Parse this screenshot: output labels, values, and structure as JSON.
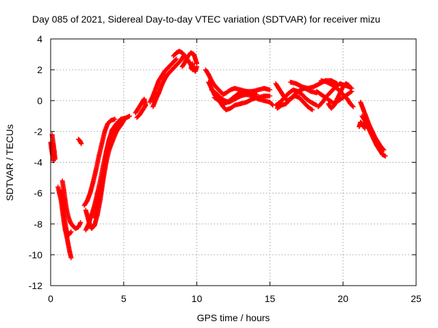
{
  "chart_data": {
    "type": "scatter",
    "title": "Day 085 of 2021, Sidereal Day-to-day VTEC variation (SDTVAR) for receiver mizu",
    "xlabel": "GPS time / hours",
    "ylabel": "SDTVAR / TECUs",
    "xlim": [
      0,
      25
    ],
    "ylim": [
      -12,
      4
    ],
    "xticks": [
      0,
      5,
      10,
      15,
      20,
      25
    ],
    "yticks": [
      -12,
      -10,
      -8,
      -6,
      -4,
      -2,
      0,
      2,
      4
    ],
    "grid": true,
    "colors": {
      "series": "#ff0000",
      "grid": "#a0a0a0",
      "axis": "#000000"
    },
    "marker": "+",
    "series": [
      {
        "name": "seg01",
        "points": [
          [
            0.0,
            -2.7
          ],
          [
            0.05,
            -3.1
          ],
          [
            0.12,
            -3.5
          ],
          [
            0.2,
            -3.9
          ]
        ]
      },
      {
        "name": "seg02",
        "points": [
          [
            0.1,
            -2.2
          ],
          [
            0.18,
            -2.8
          ],
          [
            0.25,
            -3.3
          ],
          [
            0.3,
            -3.8
          ]
        ]
      },
      {
        "name": "seg03",
        "points": [
          [
            0.5,
            -5.6
          ],
          [
            0.6,
            -6.0
          ],
          [
            0.7,
            -6.4
          ],
          [
            0.8,
            -7.1
          ],
          [
            0.9,
            -7.8
          ],
          [
            1.0,
            -8.4
          ],
          [
            1.1,
            -8.8
          ],
          [
            1.2,
            -9.3
          ],
          [
            1.3,
            -9.8
          ],
          [
            1.4,
            -10.2
          ]
        ]
      },
      {
        "name": "seg04",
        "points": [
          [
            0.8,
            -5.2
          ],
          [
            0.9,
            -5.8
          ],
          [
            1.0,
            -6.5
          ],
          [
            1.1,
            -7.1
          ],
          [
            1.2,
            -7.5
          ],
          [
            1.35,
            -7.9
          ],
          [
            1.5,
            -8.1
          ],
          [
            1.7,
            -8.3
          ],
          [
            1.9,
            -8.2
          ],
          [
            2.05,
            -7.9
          ]
        ]
      },
      {
        "name": "seg05",
        "points": [
          [
            0.7,
            -5.9
          ],
          [
            0.8,
            -6.6
          ],
          [
            0.9,
            -7.3
          ],
          [
            1.0,
            -8.0
          ],
          [
            1.1,
            -8.5
          ],
          [
            1.25,
            -8.7
          ],
          [
            1.4,
            -8.5
          ]
        ]
      },
      {
        "name": "seg06",
        "points": [
          [
            1.9,
            -2.5
          ],
          [
            2.0,
            -2.6
          ],
          [
            2.1,
            -2.8
          ]
        ]
      },
      {
        "name": "seg07",
        "points": [
          [
            2.4,
            -7.1
          ],
          [
            2.6,
            -7.8
          ],
          [
            2.8,
            -8.3
          ],
          [
            3.0,
            -8.1
          ],
          [
            3.2,
            -7.4
          ],
          [
            3.4,
            -6.4
          ],
          [
            3.6,
            -5.1
          ],
          [
            3.8,
            -4.0
          ],
          [
            4.0,
            -3.2
          ],
          [
            4.2,
            -2.7
          ],
          [
            4.5,
            -2.0
          ],
          [
            4.8,
            -1.6
          ],
          [
            5.0,
            -1.3
          ]
        ]
      },
      {
        "name": "seg08",
        "points": [
          [
            2.3,
            -6.8
          ],
          [
            2.5,
            -6.5
          ],
          [
            2.7,
            -6.0
          ],
          [
            2.9,
            -5.3
          ],
          [
            3.1,
            -4.5
          ],
          [
            3.3,
            -3.6
          ],
          [
            3.5,
            -2.8
          ],
          [
            3.7,
            -2.0
          ],
          [
            3.9,
            -1.5
          ],
          [
            4.1,
            -1.3
          ],
          [
            4.4,
            -1.2
          ]
        ]
      },
      {
        "name": "seg09",
        "points": [
          [
            3.0,
            -7.6
          ],
          [
            3.2,
            -6.9
          ],
          [
            3.4,
            -6.0
          ],
          [
            3.6,
            -4.8
          ],
          [
            3.8,
            -3.6
          ],
          [
            4.0,
            -2.6
          ],
          [
            4.2,
            -1.9
          ],
          [
            4.5,
            -1.5
          ],
          [
            4.8,
            -1.2
          ],
          [
            5.2,
            -1.1
          ],
          [
            5.4,
            -1.0
          ]
        ]
      },
      {
        "name": "seg10",
        "points": [
          [
            2.4,
            -8.4
          ],
          [
            2.6,
            -8.0
          ],
          [
            2.8,
            -7.4
          ],
          [
            3.0,
            -6.8
          ],
          [
            3.2,
            -6.0
          ],
          [
            3.4,
            -5.2
          ],
          [
            3.6,
            -4.2
          ],
          [
            3.8,
            -3.3
          ],
          [
            4.0,
            -2.5
          ],
          [
            4.2,
            -2.0
          ],
          [
            4.5,
            -1.7
          ],
          [
            4.8,
            -1.4
          ],
          [
            5.0,
            -1.2
          ]
        ]
      },
      {
        "name": "seg11",
        "points": [
          [
            5.8,
            -0.8
          ],
          [
            6.0,
            -0.5
          ],
          [
            6.2,
            -0.2
          ],
          [
            6.4,
            0.1
          ],
          [
            6.5,
            -0.3
          ],
          [
            6.3,
            -0.6
          ],
          [
            6.1,
            -0.9
          ],
          [
            5.9,
            -1.1
          ]
        ]
      },
      {
        "name": "seg12",
        "points": [
          [
            6.8,
            -0.1
          ],
          [
            7.0,
            0.3
          ],
          [
            7.2,
            0.8
          ],
          [
            7.4,
            1.3
          ],
          [
            7.6,
            1.6
          ],
          [
            7.8,
            1.9
          ],
          [
            8.0,
            2.1
          ],
          [
            8.2,
            2.3
          ],
          [
            8.4,
            2.5
          ],
          [
            8.6,
            2.7
          ]
        ]
      },
      {
        "name": "seg13",
        "points": [
          [
            7.0,
            -0.4
          ],
          [
            7.2,
            0.1
          ],
          [
            7.4,
            0.5
          ],
          [
            7.6,
            1.0
          ],
          [
            7.8,
            1.4
          ],
          [
            8.0,
            1.7
          ],
          [
            8.3,
            2.0
          ],
          [
            8.6,
            2.3
          ],
          [
            8.9,
            2.6
          ],
          [
            9.1,
            2.9
          ]
        ]
      },
      {
        "name": "seg14",
        "points": [
          [
            8.4,
            2.9
          ],
          [
            8.6,
            3.1
          ],
          [
            8.8,
            3.2
          ],
          [
            9.0,
            3.1
          ],
          [
            9.2,
            2.9
          ],
          [
            9.4,
            2.6
          ],
          [
            9.6,
            2.3
          ],
          [
            9.7,
            2.0
          ]
        ]
      },
      {
        "name": "seg15",
        "points": [
          [
            9.0,
            2.2
          ],
          [
            9.2,
            2.5
          ],
          [
            9.4,
            2.9
          ],
          [
            9.6,
            3.1
          ],
          [
            9.8,
            3.0
          ],
          [
            9.9,
            2.7
          ],
          [
            10.0,
            2.4
          ]
        ]
      },
      {
        "name": "seg16",
        "points": [
          [
            9.6,
            2.1
          ],
          [
            9.7,
            2.4
          ],
          [
            9.8,
            2.0
          ],
          [
            9.9,
            1.9
          ],
          [
            10.0,
            2.2
          ]
        ]
      },
      {
        "name": "seg17",
        "points": [
          [
            10.6,
            2.0
          ],
          [
            10.8,
            1.7
          ],
          [
            11.0,
            1.3
          ],
          [
            11.2,
            1.0
          ],
          [
            11.4,
            0.8
          ],
          [
            11.6,
            0.6
          ],
          [
            11.8,
            0.4
          ],
          [
            12.0,
            0.5
          ],
          [
            12.3,
            0.7
          ],
          [
            12.6,
            0.8
          ],
          [
            13.0,
            0.7
          ],
          [
            13.4,
            0.6
          ],
          [
            13.8,
            0.6
          ],
          [
            14.2,
            0.7
          ],
          [
            14.6,
            0.8
          ],
          [
            15.0,
            0.7
          ]
        ]
      },
      {
        "name": "seg18",
        "points": [
          [
            10.8,
            1.2
          ],
          [
            11.0,
            0.8
          ],
          [
            11.2,
            0.4
          ],
          [
            11.4,
            0.1
          ],
          [
            11.6,
            -0.1
          ],
          [
            11.8,
            -0.4
          ],
          [
            12.0,
            -0.6
          ],
          [
            12.3,
            -0.5
          ],
          [
            12.6,
            -0.3
          ],
          [
            13.0,
            -0.2
          ],
          [
            13.4,
            -0.1
          ],
          [
            13.8,
            0.1
          ],
          [
            14.2,
            0.2
          ],
          [
            14.6,
            0.3
          ],
          [
            15.0,
            0.3
          ]
        ]
      },
      {
        "name": "seg19",
        "points": [
          [
            11.0,
            0.7
          ],
          [
            11.3,
            0.5
          ],
          [
            11.6,
            0.2
          ],
          [
            11.9,
            0.0
          ],
          [
            12.2,
            -0.1
          ],
          [
            12.6,
            0.1
          ],
          [
            13.0,
            0.3
          ],
          [
            13.4,
            0.4
          ],
          [
            13.8,
            0.3
          ],
          [
            14.2,
            0.1
          ],
          [
            14.6,
            0.0
          ],
          [
            15.0,
            -0.1
          ],
          [
            15.2,
            -0.3
          ]
        ]
      },
      {
        "name": "seg20",
        "points": [
          [
            11.2,
            0.2
          ],
          [
            11.5,
            0.0
          ],
          [
            11.8,
            -0.2
          ],
          [
            12.1,
            -0.1
          ],
          [
            12.5,
            0.2
          ],
          [
            12.9,
            0.5
          ],
          [
            13.3,
            0.6
          ],
          [
            13.7,
            0.5
          ],
          [
            14.1,
            0.4
          ]
        ]
      },
      {
        "name": "seg21",
        "points": [
          [
            15.4,
            1.1
          ],
          [
            15.6,
            0.8
          ],
          [
            15.8,
            0.5
          ],
          [
            16.0,
            0.2
          ],
          [
            16.2,
            0.0
          ],
          [
            16.5,
            0.2
          ],
          [
            16.8,
            0.5
          ],
          [
            17.1,
            0.7
          ],
          [
            17.4,
            0.8
          ],
          [
            17.8,
            0.6
          ],
          [
            18.2,
            0.5
          ]
        ]
      },
      {
        "name": "seg22",
        "points": [
          [
            15.4,
            -0.3
          ],
          [
            15.7,
            -0.1
          ],
          [
            16.0,
            0.2
          ],
          [
            16.3,
            0.5
          ],
          [
            16.6,
            0.7
          ],
          [
            16.9,
            0.6
          ],
          [
            17.2,
            0.4
          ],
          [
            17.5,
            0.1
          ],
          [
            17.8,
            -0.1
          ],
          [
            18.2,
            -0.3
          ]
        ]
      },
      {
        "name": "seg23",
        "points": [
          [
            15.5,
            -0.5
          ],
          [
            15.8,
            -0.3
          ],
          [
            16.1,
            -0.2
          ],
          [
            16.4,
            0.1
          ],
          [
            16.7,
            0.3
          ],
          [
            17.0,
            0.2
          ],
          [
            17.3,
            -0.1
          ],
          [
            17.6,
            -0.4
          ],
          [
            17.9,
            -0.6
          ]
        ]
      },
      {
        "name": "seg24",
        "points": [
          [
            16.4,
            1.2
          ],
          [
            16.8,
            1.1
          ],
          [
            17.2,
            0.9
          ],
          [
            17.6,
            0.8
          ],
          [
            18.0,
            0.9
          ],
          [
            18.4,
            1.1
          ],
          [
            18.8,
            1.3
          ],
          [
            19.2,
            1.3
          ],
          [
            19.6,
            1.1
          ]
        ]
      },
      {
        "name": "seg25",
        "points": [
          [
            18.2,
            0.6
          ],
          [
            18.5,
            0.4
          ],
          [
            18.8,
            0.2
          ],
          [
            19.1,
            0.0
          ],
          [
            19.4,
            -0.2
          ],
          [
            19.7,
            0.0
          ],
          [
            20.0,
            0.2
          ],
          [
            20.3,
            0.4
          ],
          [
            20.6,
            0.6
          ]
        ]
      },
      {
        "name": "seg26",
        "points": [
          [
            18.3,
            -0.4
          ],
          [
            18.6,
            -0.1
          ],
          [
            18.9,
            0.3
          ],
          [
            19.2,
            0.6
          ],
          [
            19.5,
            0.9
          ],
          [
            19.8,
            1.1
          ],
          [
            20.1,
            1.0
          ],
          [
            20.4,
            0.9
          ],
          [
            20.6,
            0.8
          ]
        ]
      },
      {
        "name": "seg27",
        "points": [
          [
            18.5,
            1.3
          ],
          [
            18.9,
            1.2
          ],
          [
            19.3,
            1.0
          ],
          [
            19.7,
            0.7
          ],
          [
            20.0,
            0.4
          ],
          [
            20.3,
            0.1
          ],
          [
            20.5,
            -0.2
          ],
          [
            20.7,
            -0.4
          ]
        ]
      },
      {
        "name": "seg28",
        "points": [
          [
            19.0,
            -0.2
          ],
          [
            19.2,
            -0.5
          ],
          [
            19.4,
            -0.3
          ],
          [
            19.6,
            0.1
          ],
          [
            19.8,
            0.5
          ],
          [
            20.0,
            0.9
          ],
          [
            20.2,
            1.1
          ],
          [
            20.4,
            1.0
          ]
        ]
      },
      {
        "name": "seg29",
        "points": [
          [
            21.2,
            -0.1
          ],
          [
            21.4,
            -0.6
          ],
          [
            21.6,
            -1.1
          ],
          [
            21.8,
            -1.6
          ],
          [
            22.0,
            -2.0
          ],
          [
            22.2,
            -2.4
          ],
          [
            22.4,
            -2.7
          ],
          [
            22.6,
            -3.0
          ],
          [
            22.8,
            -3.2
          ]
        ]
      },
      {
        "name": "seg30",
        "points": [
          [
            21.3,
            -1.0
          ],
          [
            21.5,
            -1.3
          ],
          [
            21.7,
            -1.7
          ],
          [
            21.9,
            -2.1
          ],
          [
            22.1,
            -2.5
          ],
          [
            22.3,
            -2.9
          ],
          [
            22.5,
            -3.2
          ],
          [
            22.7,
            -3.5
          ],
          [
            22.9,
            -3.6
          ]
        ]
      },
      {
        "name": "seg31",
        "points": [
          [
            21.1,
            -1.7
          ],
          [
            21.2,
            -1.4
          ],
          [
            21.3,
            -1.5
          ],
          [
            21.5,
            -1.8
          ]
        ]
      }
    ]
  }
}
